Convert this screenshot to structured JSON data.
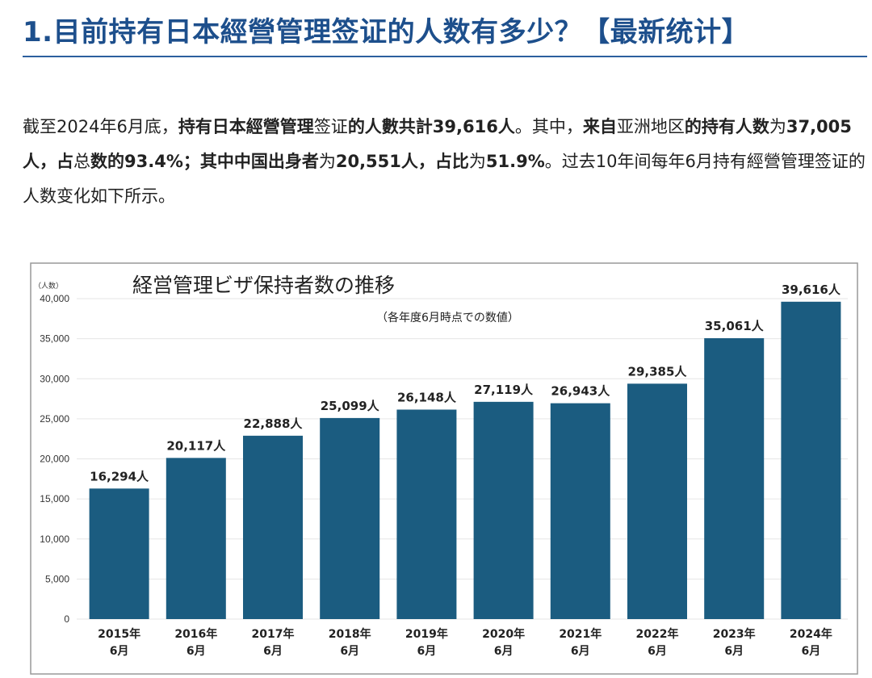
{
  "header": {
    "title": "1.目前持有日本經營管理签证的人数有多少？【最新统计】"
  },
  "paragraph": [
    {
      "text": "截至2024年6月底，",
      "bold": false
    },
    {
      "text": "持有日本經營管理",
      "bold": true
    },
    {
      "text": "签证",
      "bold": false
    },
    {
      "text": "的人數共計39,616人",
      "bold": true
    },
    {
      "text": "。其中，",
      "bold": false
    },
    {
      "text": "来自",
      "bold": true
    },
    {
      "text": "亚洲地区",
      "bold": false
    },
    {
      "text": "的持有人数",
      "bold": true
    },
    {
      "text": "为",
      "bold": false
    },
    {
      "text": "37,005人，占",
      "bold": true
    },
    {
      "text": "总",
      "bold": false
    },
    {
      "text": "数的93.4%；其中中国出身者",
      "bold": true
    },
    {
      "text": "为",
      "bold": false
    },
    {
      "text": "20,551人，占比",
      "bold": true
    },
    {
      "text": "为",
      "bold": false
    },
    {
      "text": "51.9%",
      "bold": true
    },
    {
      "text": "。过去10年间每年6月持有經營管理签证的人数变化如下所示。",
      "bold": false
    }
  ],
  "chart_data": {
    "type": "bar",
    "title": "経営管理ビザ保持者数の推移",
    "subtitle": "（各年度6月時点での数値）",
    "ylabel": "（人数）",
    "ylim": [
      0,
      40000
    ],
    "yticks": [
      "0",
      "5,000",
      "10,000",
      "15,000",
      "20,000",
      "25,000",
      "30,000",
      "35,000",
      "40,000"
    ],
    "grid": true,
    "categories": [
      [
        "2015年",
        "6月"
      ],
      [
        "2016年",
        "6月"
      ],
      [
        "2017年",
        "6月"
      ],
      [
        "2018年",
        "6月"
      ],
      [
        "2019年",
        "6月"
      ],
      [
        "2020年",
        "6月"
      ],
      [
        "2021年",
        "6月"
      ],
      [
        "2022年",
        "6月"
      ],
      [
        "2023年",
        "6月"
      ],
      [
        "2024年",
        "6月"
      ]
    ],
    "values": [
      16294,
      20117,
      22888,
      25099,
      26148,
      27119,
      26943,
      29385,
      35061,
      39616
    ],
    "data_labels": [
      "16,294人",
      "20,117人",
      "22,888人",
      "25,099人",
      "26,148人",
      "27,119人",
      "26,943人",
      "29,385人",
      "35,061人",
      "39,616人"
    ],
    "colors": {
      "bar": "#1b5c80",
      "highlight_label": "#d0021b",
      "label": "#222222"
    }
  }
}
